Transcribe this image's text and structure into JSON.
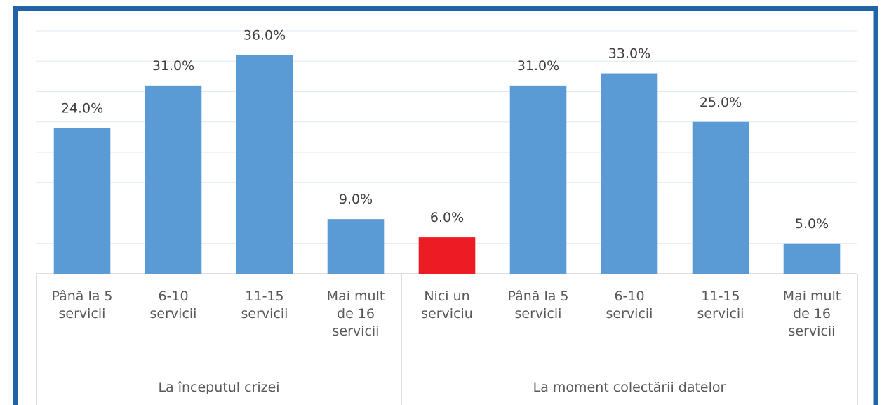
{
  "chart_data": {
    "type": "bar",
    "groups": [
      {
        "label": "La începutul crizei",
        "categories": [
          "Până la 5 servicii",
          "6-10 servicii",
          "11-15 servicii",
          "Mai mult de 16 servicii"
        ],
        "values": [
          24,
          31,
          36,
          9
        ],
        "value_labels": [
          "24.0%",
          "31.0%",
          "36.0%",
          "9.0%"
        ],
        "colors": [
          "#5b9bd5",
          "#5b9bd5",
          "#5b9bd5",
          "#5b9bd5"
        ]
      },
      {
        "label": "La moment colectării datelor",
        "categories": [
          "Nici un serviciu",
          "Până la 5 servicii",
          "6-10 servicii",
          "11-15 servicii",
          "Mai mult de 16 servicii"
        ],
        "values": [
          6,
          31,
          33,
          25,
          5
        ],
        "value_labels": [
          "6.0%",
          "31.0%",
          "33.0%",
          "25.0%",
          "5.0%"
        ],
        "colors": [
          "#ed1c24",
          "#5b9bd5",
          "#5b9bd5",
          "#5b9bd5",
          "#5b9bd5"
        ]
      }
    ],
    "ylim": [
      0,
      40
    ],
    "yticks": [
      0,
      5,
      10,
      15,
      20,
      25,
      30,
      35,
      40
    ],
    "grid": true
  }
}
